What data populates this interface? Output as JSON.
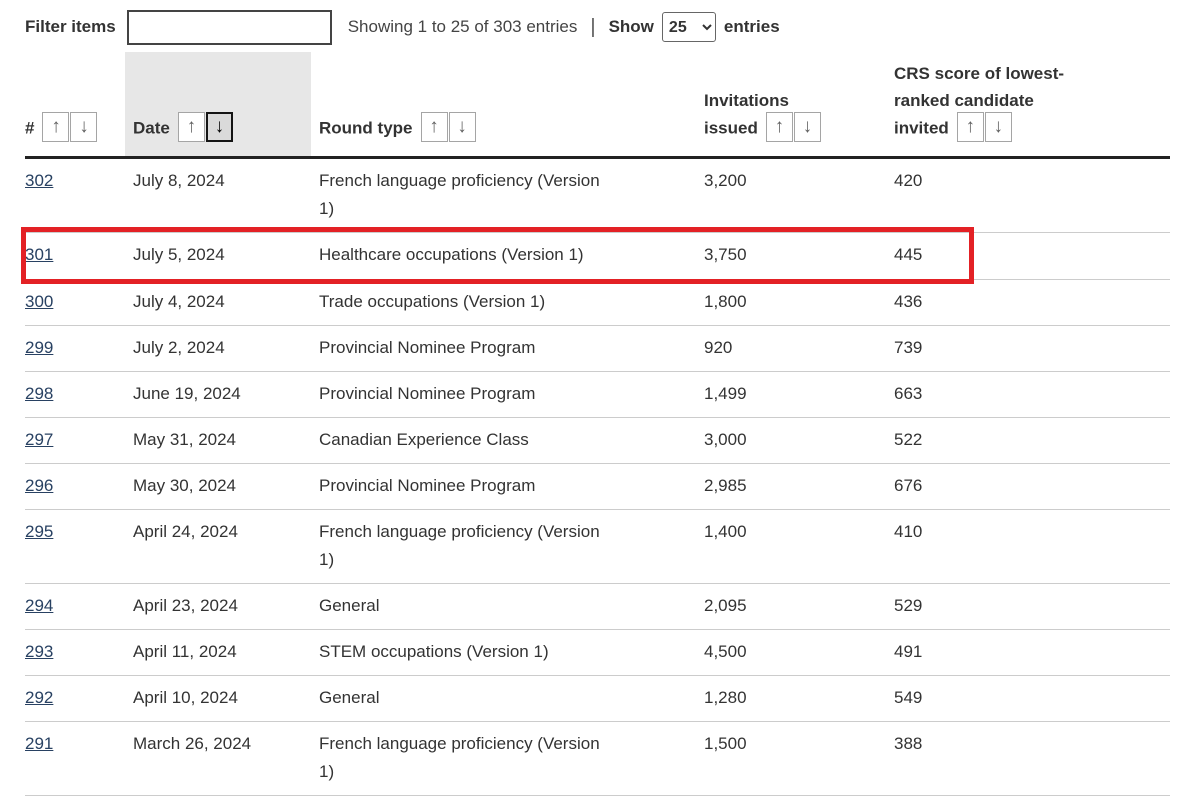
{
  "toolbar": {
    "filter_label": "Filter items",
    "filter_value": "",
    "showing_text": "Showing 1 to 25 of 303 entries",
    "divider": "|",
    "show_label": "Show",
    "page_size": "25",
    "entries_label": "entries"
  },
  "table": {
    "columns": [
      {
        "label": "#",
        "sortable": true
      },
      {
        "label": "Date",
        "sortable": true,
        "sorted": "desc",
        "highlighted": true
      },
      {
        "label": "Round type",
        "sortable": true
      },
      {
        "label": "Invitations issued",
        "sortable": true
      },
      {
        "label": "CRS score of lowest-ranked candidate invited",
        "sortable": true
      }
    ],
    "rows": [
      {
        "num": "302",
        "date": "July 8, 2024",
        "round_type": "French language proficiency (Version 1)",
        "invitations": "3,200",
        "crs": "420"
      },
      {
        "num": "301",
        "date": "July 5, 2024",
        "round_type": "Healthcare occupations (Version 1)",
        "invitations": "3,750",
        "crs": "445",
        "highlighted": true
      },
      {
        "num": "300",
        "date": "July 4, 2024",
        "round_type": "Trade occupations (Version 1)",
        "invitations": "1,800",
        "crs": "436"
      },
      {
        "num": "299",
        "date": "July 2, 2024",
        "round_type": "Provincial Nominee Program",
        "invitations": "920",
        "crs": "739"
      },
      {
        "num": "298",
        "date": "June 19, 2024",
        "round_type": "Provincial Nominee Program",
        "invitations": "1,499",
        "crs": "663"
      },
      {
        "num": "297",
        "date": "May 31, 2024",
        "round_type": "Canadian Experience Class",
        "invitations": "3,000",
        "crs": "522"
      },
      {
        "num": "296",
        "date": "May 30, 2024",
        "round_type": "Provincial Nominee Program",
        "invitations": "2,985",
        "crs": "676"
      },
      {
        "num": "295",
        "date": "April 24, 2024",
        "round_type": "French language proficiency (Version 1)",
        "invitations": "1,400",
        "crs": "410"
      },
      {
        "num": "294",
        "date": "April 23, 2024",
        "round_type": "General",
        "invitations": "2,095",
        "crs": "529"
      },
      {
        "num": "293",
        "date": "April 11, 2024",
        "round_type": "STEM occupations (Version 1)",
        "invitations": "4,500",
        "crs": "491"
      },
      {
        "num": "292",
        "date": "April 10, 2024",
        "round_type": "General",
        "invitations": "1,280",
        "crs": "549"
      },
      {
        "num": "291",
        "date": "March 26, 2024",
        "round_type": "French language proficiency (Version 1)",
        "invitations": "1,500",
        "crs": "388"
      }
    ]
  },
  "icons": {
    "sort_asc": "↑",
    "sort_desc": "↓"
  },
  "colors": {
    "highlight_box": "#e32125",
    "link": "#284162",
    "sorted_column_bg": "#e7e7e7"
  }
}
